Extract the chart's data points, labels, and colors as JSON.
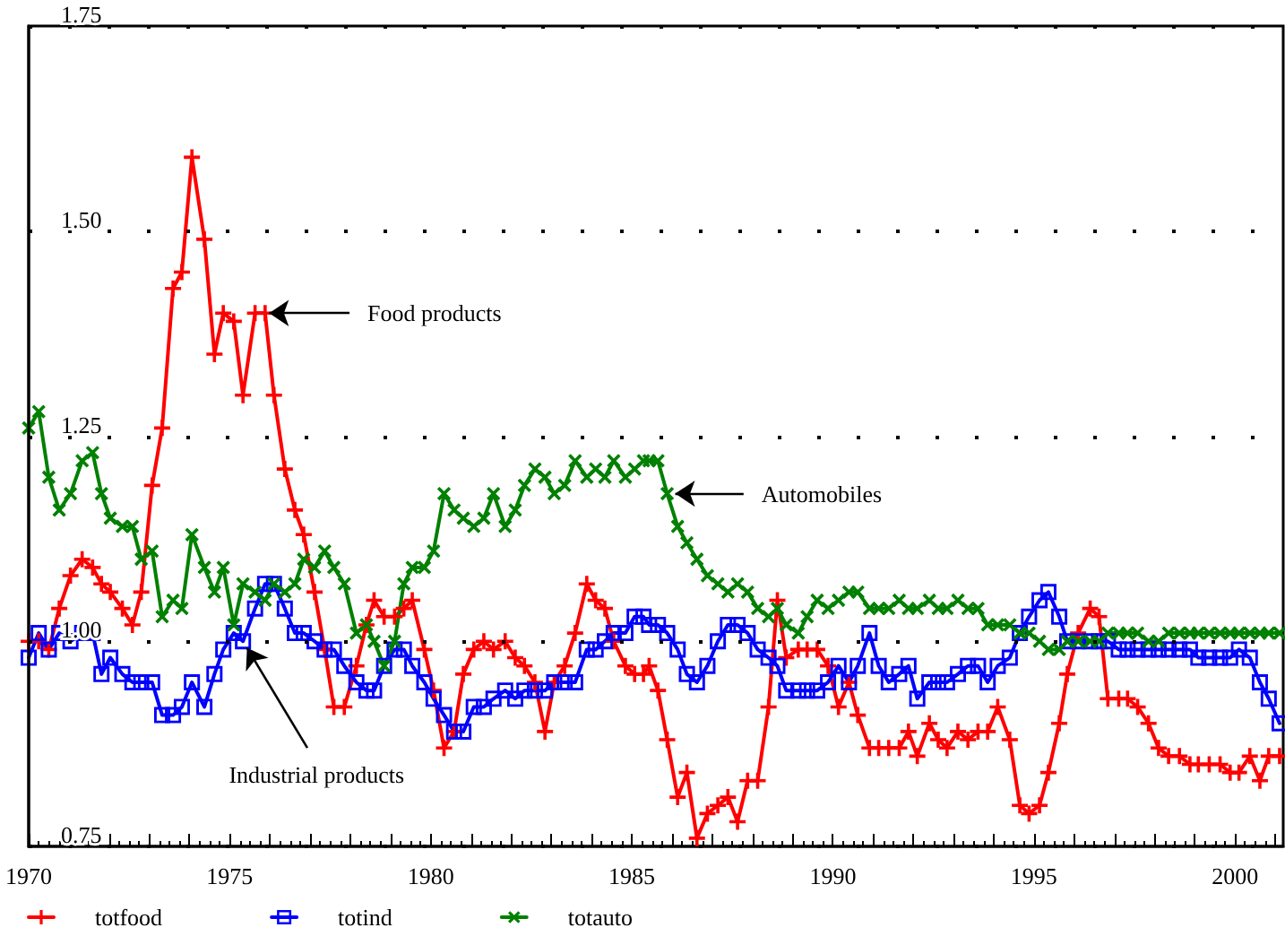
{
  "chart_data": {
    "type": "line",
    "x": [
      1970.0,
      1970.25,
      1970.5,
      1970.76,
      1971.04,
      1971.33,
      1971.59,
      1971.81,
      1972.03,
      1972.33,
      1972.58,
      1972.8,
      1973.07,
      1973.32,
      1973.59,
      1973.81,
      1974.06,
      1974.37,
      1974.62,
      1974.84,
      1975.1,
      1975.33,
      1975.63,
      1975.88,
      1976.1,
      1976.37,
      1976.62,
      1976.84,
      1977.11,
      1977.36,
      1977.59,
      1977.85,
      1978.15,
      1978.4,
      1978.59,
      1978.84,
      1979.1,
      1979.33,
      1979.54,
      1979.84,
      1980.07,
      1980.33,
      1980.58,
      1980.81,
      1981.07,
      1981.32,
      1981.56,
      1981.85,
      1982.1,
      1982.33,
      1982.59,
      1982.84,
      1983.07,
      1983.33,
      1983.59,
      1983.88,
      1984.1,
      1984.33,
      1984.55,
      1984.84,
      1985.07,
      1985.29,
      1985.43,
      1985.65,
      1985.88,
      1986.14,
      1986.37,
      1986.62,
      1986.88,
      1987.14,
      1987.39,
      1987.63,
      1987.88,
      1988.13,
      1988.4,
      1988.62,
      1988.84,
      1989.14,
      1989.36,
      1989.61,
      1989.88,
      1990.14,
      1990.4,
      1990.62,
      1990.91,
      1991.14,
      1991.39,
      1991.65,
      1991.88,
      1992.1,
      1992.4,
      1992.62,
      1992.84,
      1993.11,
      1993.36,
      1993.61,
      1993.85,
      1994.1,
      1994.4,
      1994.65,
      1994.88,
      1995.14,
      1995.36,
      1995.63,
      1995.83,
      1996.1,
      1996.4,
      1996.62,
      1996.84,
      1997.11,
      1997.33,
      1997.58,
      1997.85,
      1998.1,
      1998.35,
      1998.62,
      1998.88,
      1999.09,
      1999.36,
      1999.63,
      1999.88,
      2000.1,
      2000.37,
      2000.62,
      2000.84,
      2001.11
    ],
    "series": [
      {
        "name": "totfood",
        "color": "#ff0000",
        "marker": "cross",
        "values": [
          1.0,
          1.0,
          0.99,
          1.04,
          1.08,
          1.1,
          1.09,
          1.07,
          1.06,
          1.04,
          1.02,
          1.06,
          1.19,
          1.26,
          1.43,
          1.45,
          1.59,
          1.49,
          1.35,
          1.4,
          1.39,
          1.3,
          1.4,
          1.4,
          1.3,
          1.21,
          1.16,
          1.13,
          1.06,
          0.99,
          0.92,
          0.92,
          0.97,
          1.02,
          1.05,
          1.03,
          1.03,
          1.04,
          1.05,
          0.99,
          0.94,
          0.87,
          0.89,
          0.96,
          0.99,
          1.0,
          0.99,
          1.0,
          0.98,
          0.97,
          0.95,
          0.89,
          0.95,
          0.97,
          1.01,
          1.07,
          1.05,
          1.04,
          1.0,
          0.97,
          0.96,
          0.96,
          0.97,
          0.94,
          0.88,
          0.81,
          0.84,
          0.76,
          0.79,
          0.8,
          0.81,
          0.78,
          0.83,
          0.83,
          0.92,
          1.05,
          0.98,
          0.99,
          0.99,
          0.99,
          0.97,
          0.92,
          0.95,
          0.91,
          0.87,
          0.87,
          0.87,
          0.87,
          0.89,
          0.86,
          0.9,
          0.88,
          0.87,
          0.89,
          0.88,
          0.89,
          0.89,
          0.92,
          0.88,
          0.8,
          0.79,
          0.8,
          0.84,
          0.9,
          0.96,
          1.01,
          1.04,
          1.03,
          0.93,
          0.93,
          0.93,
          0.92,
          0.9,
          0.87,
          0.86,
          0.86,
          0.85,
          0.85,
          0.85,
          0.85,
          0.84,
          0.84,
          0.86,
          0.83,
          0.86,
          0.86
        ]
      },
      {
        "name": "totind",
        "color": "#0000ff",
        "marker": "square",
        "values": [
          0.98,
          1.01,
          0.99,
          1.01,
          1.0,
          1.01,
          1.01,
          0.96,
          0.98,
          0.96,
          0.95,
          0.95,
          0.95,
          0.91,
          0.91,
          0.92,
          0.95,
          0.92,
          0.96,
          0.99,
          1.01,
          1.0,
          1.04,
          1.07,
          1.07,
          1.04,
          1.01,
          1.01,
          1.0,
          0.99,
          0.99,
          0.97,
          0.95,
          0.94,
          0.94,
          0.97,
          0.99,
          0.99,
          0.97,
          0.95,
          0.93,
          0.91,
          0.89,
          0.89,
          0.92,
          0.92,
          0.93,
          0.94,
          0.93,
          0.94,
          0.94,
          0.94,
          0.95,
          0.95,
          0.95,
          0.99,
          0.99,
          1.0,
          1.01,
          1.01,
          1.03,
          1.03,
          1.02,
          1.02,
          1.01,
          0.99,
          0.96,
          0.95,
          0.97,
          1.0,
          1.02,
          1.02,
          1.01,
          0.99,
          0.98,
          0.97,
          0.94,
          0.94,
          0.94,
          0.94,
          0.95,
          0.97,
          0.95,
          0.97,
          1.01,
          0.97,
          0.95,
          0.96,
          0.97,
          0.93,
          0.95,
          0.95,
          0.95,
          0.96,
          0.97,
          0.97,
          0.95,
          0.97,
          0.98,
          1.01,
          1.03,
          1.05,
          1.06,
          1.03,
          1.0,
          1.0,
          1.0,
          1.0,
          1.0,
          0.99,
          0.99,
          0.99,
          0.99,
          0.99,
          0.99,
          0.99,
          0.99,
          0.98,
          0.98,
          0.98,
          0.98,
          0.99,
          0.98,
          0.95,
          0.93,
          0.9
        ]
      },
      {
        "name": "totauto",
        "color": "#008000",
        "marker": "cross",
        "values": [
          1.26,
          1.28,
          1.2,
          1.16,
          1.18,
          1.22,
          1.23,
          1.18,
          1.15,
          1.14,
          1.14,
          1.1,
          1.11,
          1.03,
          1.05,
          1.04,
          1.13,
          1.09,
          1.06,
          1.09,
          1.02,
          1.07,
          1.06,
          1.05,
          1.07,
          1.06,
          1.07,
          1.1,
          1.09,
          1.11,
          1.09,
          1.07,
          1.01,
          1.02,
          1.0,
          0.97,
          1.0,
          1.07,
          1.09,
          1.09,
          1.11,
          1.18,
          1.16,
          1.15,
          1.14,
          1.15,
          1.18,
          1.14,
          1.16,
          1.19,
          1.21,
          1.2,
          1.18,
          1.19,
          1.22,
          1.2,
          1.21,
          1.2,
          1.22,
          1.2,
          1.21,
          1.22,
          1.22,
          1.22,
          1.18,
          1.14,
          1.12,
          1.1,
          1.08,
          1.07,
          1.06,
          1.07,
          1.06,
          1.04,
          1.03,
          1.04,
          1.02,
          1.01,
          1.03,
          1.05,
          1.04,
          1.05,
          1.06,
          1.06,
          1.04,
          1.04,
          1.04,
          1.05,
          1.04,
          1.04,
          1.05,
          1.04,
          1.04,
          1.05,
          1.04,
          1.04,
          1.02,
          1.02,
          1.02,
          1.01,
          1.01,
          1.0,
          0.99,
          0.99,
          1.0,
          1.0,
          1.0,
          1.0,
          1.01,
          1.01,
          1.01,
          1.01,
          1.0,
          1.0,
          1.01,
          1.01,
          1.01,
          1.01,
          1.01,
          1.01,
          1.01,
          1.01,
          1.01,
          1.01,
          1.01,
          1.01
        ]
      }
    ],
    "annotations": [
      {
        "text": "Food products",
        "x": 1975.88,
        "y": 1.4
      },
      {
        "text": "Automobiles",
        "x": 1985.88,
        "y": 1.18
      },
      {
        "text": "Industrial products",
        "x": 1975.33,
        "y": 1.0
      }
    ],
    "xlim": [
      1970,
      2001.2
    ],
    "xticks": [
      1970,
      {
        "value": 1971,
        "label": null
      },
      {
        "value": 1972,
        "label": null
      },
      {
        "value": 1973,
        "label": null
      },
      {
        "value": 1974,
        "label": null
      },
      1975,
      {
        "value": 1976,
        "label": null
      },
      {
        "value": 1977,
        "label": null
      },
      {
        "value": 1978,
        "label": null
      },
      {
        "value": 1979,
        "label": null
      },
      1980,
      {
        "value": 1981,
        "label": null
      },
      {
        "value": 1982,
        "label": null
      },
      {
        "value": 1983,
        "label": null
      },
      {
        "value": 1984,
        "label": null
      },
      1985,
      {
        "value": 1986,
        "label": null
      },
      {
        "value": 1987,
        "label": null
      },
      {
        "value": 1988,
        "label": null
      },
      {
        "value": 1989,
        "label": null
      },
      1990,
      {
        "value": 1991,
        "label": null
      },
      {
        "value": 1992,
        "label": null
      },
      {
        "value": 1993,
        "label": null
      },
      {
        "value": 1994,
        "label": null
      },
      1995,
      {
        "value": 1996,
        "label": null
      },
      {
        "value": 1997,
        "label": null
      },
      {
        "value": 1998,
        "label": null
      },
      {
        "value": 1999,
        "label": null
      },
      2000,
      {
        "value": 2001,
        "label": null
      }
    ],
    "ylim": [
      0.75,
      1.75
    ],
    "yticks": [
      {
        "value": 0.75,
        "label": "0.75"
      },
      {
        "value": 1,
        "label": "1.00"
      },
      {
        "value": 1.25,
        "label": "1.25"
      },
      {
        "value": 1.5,
        "label": "1.50"
      },
      {
        "value": 1.75,
        "label": "1.75"
      }
    ],
    "grid": "y",
    "legend": "bottom left",
    "line_style": "solid"
  }
}
